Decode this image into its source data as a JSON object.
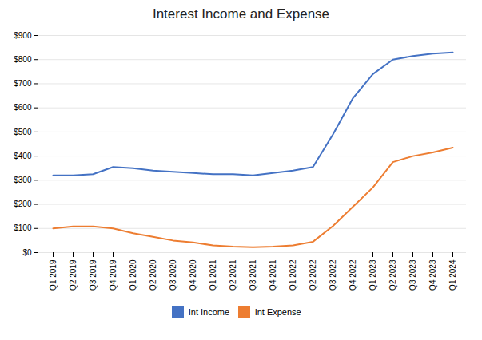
{
  "chart_data": {
    "type": "line",
    "title": "Interest Income and Expense",
    "categories": [
      "Q1 2019",
      "Q2 2019",
      "Q3 2019",
      "Q4 2019",
      "Q1 2020",
      "Q2 2020",
      "Q3 2020",
      "Q4 2020",
      "Q1 2021",
      "Q2 2021",
      "Q3 2021",
      "Q4 2021",
      "Q1 2022",
      "Q2 2022",
      "Q3 2022",
      "Q4 2022",
      "Q1 2023",
      "Q2 2023",
      "Q3 2023",
      "Q4 2023",
      "Q1 2024"
    ],
    "series": [
      {
        "name": "Int Income",
        "color": "#4472C4",
        "values": [
          320,
          320,
          325,
          355,
          350,
          340,
          335,
          330,
          325,
          325,
          320,
          330,
          340,
          355,
          490,
          640,
          740,
          800,
          815,
          825,
          830
        ]
      },
      {
        "name": "Int Expense",
        "color": "#ED7D31",
        "values": [
          100,
          108,
          108,
          100,
          80,
          65,
          50,
          42,
          30,
          25,
          22,
          25,
          30,
          45,
          110,
          190,
          270,
          375,
          400,
          415,
          435
        ]
      }
    ],
    "ylim": [
      0,
      900
    ],
    "yticks": [
      {
        "value": 0,
        "label": "$0"
      },
      {
        "value": 100,
        "label": "$100"
      },
      {
        "value": 200,
        "label": "$200"
      },
      {
        "value": 300,
        "label": "$300"
      },
      {
        "value": 400,
        "label": "$400"
      },
      {
        "value": 500,
        "label": "$500"
      },
      {
        "value": 600,
        "label": "$600"
      },
      {
        "value": 700,
        "label": "$700"
      },
      {
        "value": 800,
        "label": "$800"
      },
      {
        "value": 900,
        "label": "$900"
      }
    ],
    "grid": true,
    "legend": "bottom"
  }
}
